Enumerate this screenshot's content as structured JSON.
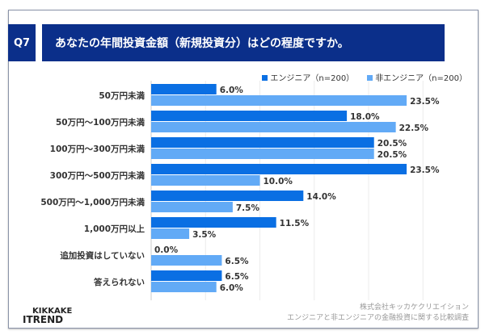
{
  "header": {
    "question": "Q7",
    "title": "あなたの年間投資金額（新規投資分）はどの程度ですか。"
  },
  "footer": {
    "logo_line1": "KIKKAKE",
    "logo_line2": "ITREND",
    "source_line1": "株式会社キッカケクリエイション",
    "source_line2": "エンジニアと非エンジニアの金融投資に関する比較調査"
  },
  "chart_data": {
    "type": "bar",
    "orientation": "horizontal",
    "grid": true,
    "legend_position": "top-right",
    "categories": [
      "50万円未満",
      "50万円～100万円未満",
      "100万円～300万円未満",
      "300万円～500万円未満",
      "500万円～1,000万円未満",
      "1,000万円以上",
      "追加投資はしていない",
      "答えられない"
    ],
    "series": [
      {
        "name": "エンジニア（n=200）",
        "color": "#0a6fe3",
        "values": [
          6.0,
          18.0,
          20.5,
          23.5,
          14.0,
          11.5,
          0.0,
          6.5
        ]
      },
      {
        "name": "非エンジニア（n=200）",
        "color": "#62aaf6",
        "values": [
          23.5,
          22.5,
          20.5,
          10.0,
          7.5,
          3.5,
          6.5,
          6.0
        ]
      }
    ],
    "value_format": "%"
  }
}
